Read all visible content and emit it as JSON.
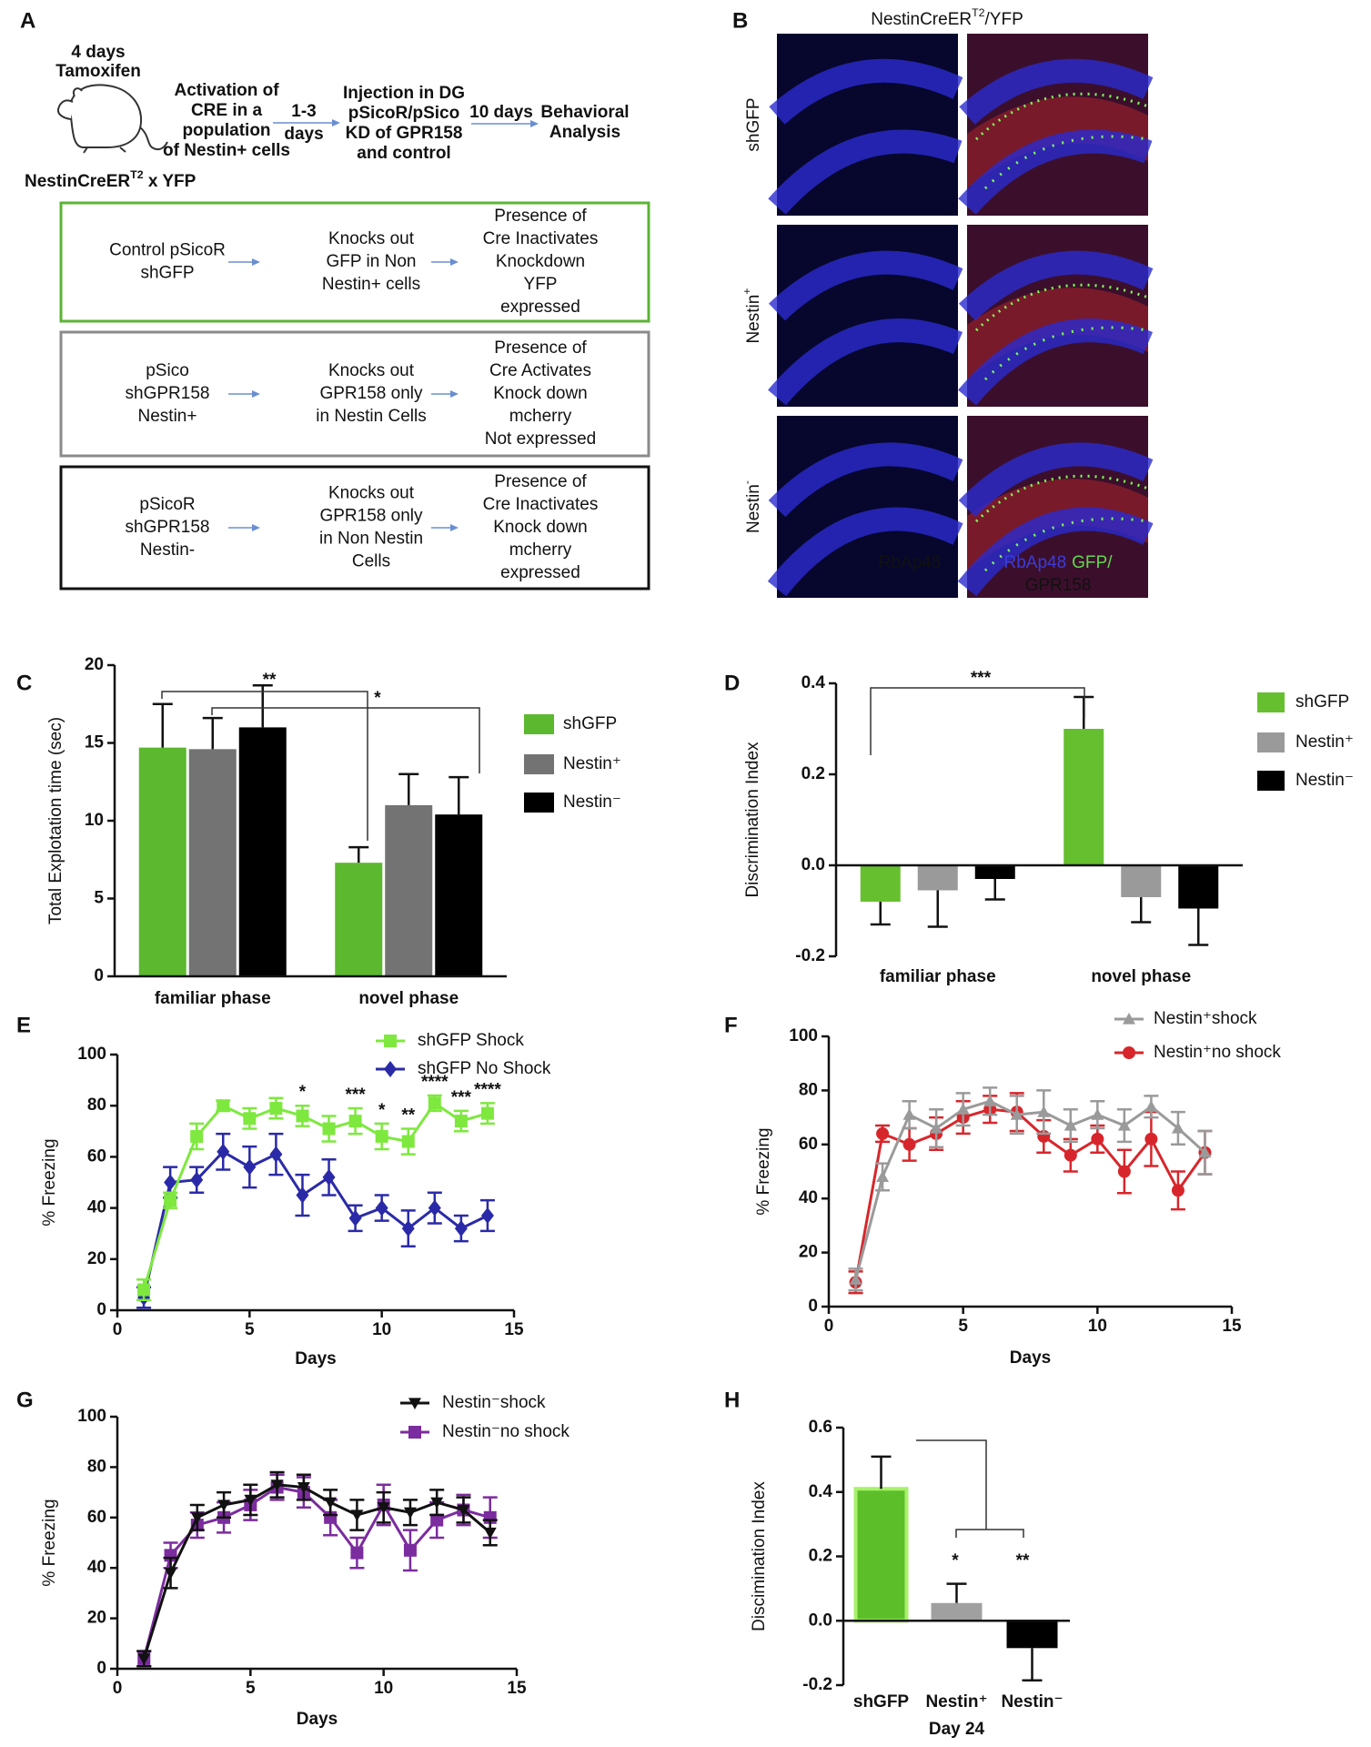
{
  "panel_a": {
    "label": "A",
    "treatment": [
      "4 days",
      "Tamoxifen"
    ],
    "strain": {
      "text": "NestinCreER",
      "sup": "T2",
      "after": " x YFP"
    },
    "steps": [
      [
        "Activation of",
        "CRE in a",
        "population",
        "of Nestin+ cells"
      ],
      [
        "Injection in DG",
        "pSicoR/pSico",
        "KD of GPR158",
        "and control"
      ],
      [
        "Behavioral",
        "Analysis"
      ]
    ],
    "intervals": [
      [
        "1-3",
        "days"
      ],
      [
        "10 days"
      ]
    ],
    "constructs": [
      {
        "vector": [
          "Control pSicoR",
          "shGFP"
        ],
        "effect": [
          "Knocks out",
          "GFP in Non",
          "Nestin+ cells"
        ],
        "outcome": [
          "Presence of",
          "Cre Inactivates",
          "Knockdown",
          "YFP",
          "expressed"
        ]
      },
      {
        "vector": [
          "pSico",
          "shGPR158",
          "Nestin+"
        ],
        "effect": [
          "Knocks out",
          "GPR158 only",
          "in Nestin Cells"
        ],
        "outcome": [
          "Presence of",
          "Cre Activates",
          "Knock down",
          "mcherry",
          "Not expressed"
        ]
      },
      {
        "vector": [
          "pSicoR",
          "shGPR158",
          "Nestin-"
        ],
        "effect": [
          "Knocks out",
          "GPR158 only",
          "in Non Nestin",
          "Cells"
        ],
        "outcome": [
          "Presence of",
          "Cre Inactivates",
          "Knock down",
          "mcherry",
          "expressed"
        ]
      }
    ]
  },
  "panel_b": {
    "label": "B",
    "title": {
      "text": "NestinCreER",
      "sup": "T2",
      "after": "/YFP"
    },
    "rows": [
      {
        "text": "shGFP"
      },
      {
        "text": "Nestin",
        "sup": "+"
      },
      {
        "text": "Nestin",
        "sup": "-"
      }
    ],
    "left_stain": "RbAp48",
    "right_stain": [
      "RbAp48",
      "GFP/",
      "GPR158"
    ]
  },
  "chart_data": [
    {
      "type": "bar",
      "panel_label": "C",
      "y_label": "Total Explotation time (sec)",
      "categories": [
        "familiar phase",
        "novel phase"
      ],
      "series": [
        {
          "name": "shGFP",
          "color": "#5cb82f",
          "values": [
            14.7,
            7.3
          ],
          "errors": [
            2.8,
            1.0
          ]
        },
        {
          "name": "Nestin⁺",
          "color": "#737373",
          "values": [
            14.6,
            11.0
          ],
          "errors": [
            2.0,
            2.0
          ]
        },
        {
          "name": "Nestin⁻",
          "color": "#000000",
          "values": [
            16.0,
            10.4
          ],
          "errors": [
            2.7,
            2.4
          ]
        }
      ],
      "ylim": [
        0,
        20
      ],
      "yticks": [
        0,
        5,
        10,
        15,
        20
      ],
      "annotations": [
        "**",
        "*"
      ],
      "legend": "right"
    },
    {
      "type": "bar",
      "panel_label": "D",
      "y_label": "Discrimination Index",
      "categories": [
        "familiar phase",
        "novel phase"
      ],
      "series": [
        {
          "name": "shGFP",
          "color": "#66bf2f",
          "values": [
            -0.08,
            0.3
          ],
          "errors": [
            0.05,
            0.07
          ]
        },
        {
          "name": "Nestin⁺",
          "color": "#9a9a9a",
          "values": [
            -0.055,
            -0.07
          ],
          "errors": [
            0.08,
            0.055
          ]
        },
        {
          "name": "Nestin⁻",
          "color": "#000000",
          "values": [
            -0.03,
            -0.095
          ],
          "errors": [
            0.045,
            0.08
          ]
        }
      ],
      "ylim": [
        -0.2,
        0.4
      ],
      "yticks": [
        -0.2,
        {
          "value": 0,
          "label": "0.0"
        },
        0.2,
        0.4
      ],
      "annotations": [
        "***"
      ],
      "legend": "right"
    },
    {
      "type": "line",
      "panel_label": "E",
      "x_label": "Days",
      "y_label": "% Freezing",
      "x": [
        1,
        2,
        3,
        4,
        5,
        6,
        7,
        8,
        9,
        10,
        11,
        12,
        13,
        14
      ],
      "xlim": [
        0,
        15
      ],
      "xticks": [
        0,
        5,
        10,
        15
      ],
      "ylim": [
        0,
        100
      ],
      "yticks": [
        0,
        20,
        40,
        60,
        80,
        100
      ],
      "series": [
        {
          "name": "shGFP Shock",
          "color": "#7ee83f",
          "marker": "square",
          "values": [
            8,
            43,
            68,
            80,
            75,
            79,
            76,
            71,
            74,
            68,
            66,
            81,
            74,
            77
          ],
          "errors": [
            4,
            3,
            5,
            2,
            4,
            4,
            4,
            5,
            5,
            5,
            5,
            3,
            4,
            4
          ]
        },
        {
          "name": "shGFP No Shock",
          "color": "#2a2aa8",
          "marker": "diamond",
          "values": [
            5,
            50,
            51,
            62,
            56,
            61,
            45,
            52,
            36,
            40,
            32,
            40,
            32,
            37
          ],
          "errors": [
            4,
            6,
            5,
            7,
            8,
            8,
            8,
            7,
            5,
            5,
            7,
            6,
            5,
            6
          ]
        }
      ],
      "annotations": [
        "*",
        "***",
        "*",
        "**",
        "****",
        "***",
        "****"
      ],
      "legend": "top"
    },
    {
      "type": "line",
      "panel_label": "F",
      "x_label": "Days",
      "y_label": "% Freezing",
      "x": [
        1,
        2,
        3,
        4,
        5,
        6,
        7,
        8,
        9,
        10,
        11,
        12,
        13,
        14
      ],
      "xlim": [
        0,
        15
      ],
      "xticks": [
        0,
        5,
        10,
        15
      ],
      "ylim": [
        0,
        100
      ],
      "yticks": [
        0,
        20,
        40,
        60,
        80,
        100
      ],
      "series": [
        {
          "name": "Nestin⁺shock",
          "color": "#9a9a9a",
          "marker": "triangle",
          "values": [
            10,
            48,
            71,
            66,
            73,
            76,
            71,
            72,
            67,
            71,
            67,
            74,
            66,
            57
          ],
          "errors": [
            4,
            5,
            5,
            7,
            6,
            5,
            7,
            8,
            6,
            5,
            6,
            4,
            6,
            8
          ]
        },
        {
          "name": "Nestin⁺no shock",
          "color": "#d7262b",
          "marker": "circle",
          "values": [
            9,
            64,
            60,
            64,
            70,
            73,
            72,
            63,
            56,
            62,
            50,
            62,
            43,
            57
          ],
          "errors": [
            4,
            3,
            6,
            6,
            6,
            5,
            7,
            6,
            6,
            5,
            8,
            10,
            7,
            8
          ]
        }
      ],
      "legend": "top"
    },
    {
      "type": "line",
      "panel_label": "G",
      "x_label": "Days",
      "y_label": "% Freezing",
      "x": [
        1,
        2,
        3,
        4,
        5,
        6,
        7,
        8,
        9,
        10,
        11,
        12,
        13,
        14
      ],
      "xlim": [
        0,
        15
      ],
      "xticks": [
        0,
        5,
        10,
        15
      ],
      "ylim": [
        0,
        100
      ],
      "yticks": [
        0,
        20,
        40,
        60,
        80,
        100
      ],
      "series": [
        {
          "name": "Nestin⁻shock",
          "color": "#111111",
          "marker": "triangle-down",
          "values": [
            4,
            38,
            60,
            65,
            67,
            73,
            72,
            66,
            61,
            64,
            62,
            66,
            63,
            54
          ],
          "errors": [
            3,
            6,
            5,
            5,
            6,
            5,
            5,
            5,
            6,
            6,
            5,
            5,
            5,
            5
          ]
        },
        {
          "name": "Nestin⁻no shock",
          "color": "#7b2c9e",
          "marker": "square",
          "values": [
            4,
            45,
            57,
            60,
            65,
            72,
            70,
            60,
            46,
            65,
            47,
            59,
            63,
            60
          ],
          "errors": [
            3,
            5,
            5,
            6,
            6,
            5,
            6,
            7,
            6,
            8,
            8,
            7,
            6,
            8
          ]
        }
      ],
      "legend": "top"
    },
    {
      "type": "bar",
      "panel_label": "H",
      "y_label": "Discimination Index",
      "x_label": "Day 24",
      "categories": [
        "shGFP",
        "Nestin⁺",
        "Nestin⁻"
      ],
      "values": [
        0.41,
        0.055,
        -0.085
      ],
      "errors": [
        0.1,
        0.06,
        0.1
      ],
      "colors": [
        "#5cbf2a",
        "#a0a0a0",
        "#000000"
      ],
      "ylim": [
        -0.2,
        0.6
      ],
      "yticks": [
        -0.2,
        {
          "value": 0,
          "label": "0.0"
        },
        0.2,
        0.4,
        0.6
      ],
      "annotations": [
        "*",
        "**"
      ]
    }
  ]
}
